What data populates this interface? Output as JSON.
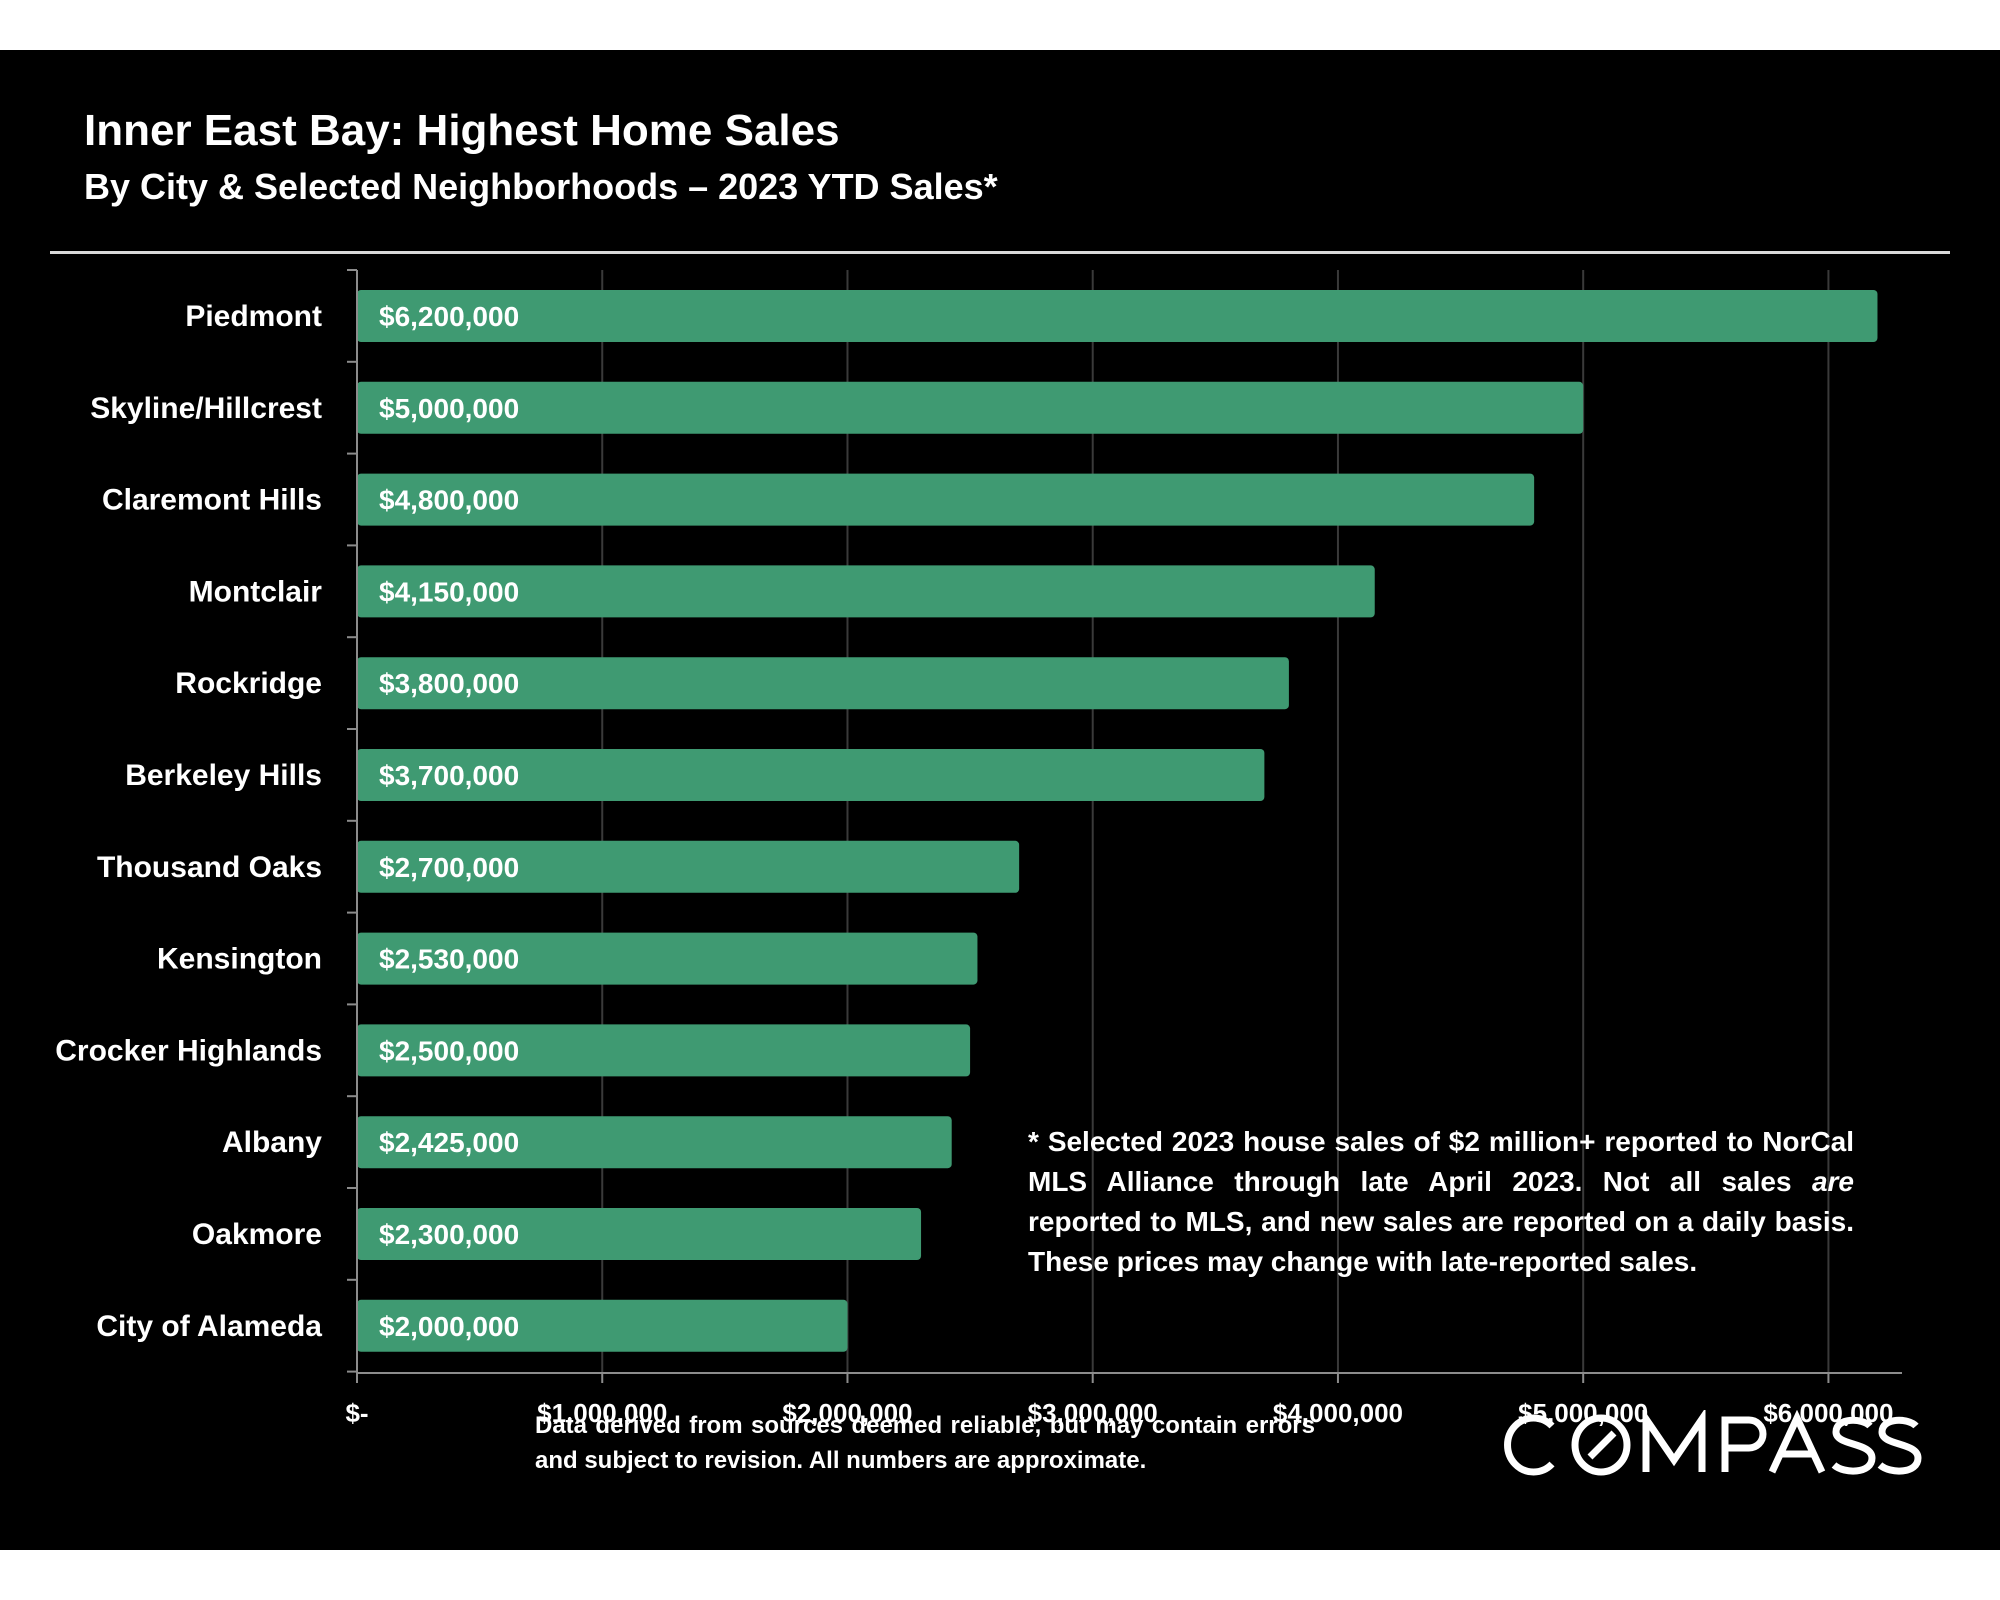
{
  "header": {
    "title": "Inner East Bay: Highest Home Sales",
    "subtitle": "By City & Selected Neighborhoods – 2023 YTD Sales*"
  },
  "chart_data": {
    "type": "bar",
    "orientation": "horizontal",
    "categories": [
      "Piedmont",
      "Skyline/Hillcrest",
      "Claremont Hills",
      "Montclair",
      "Rockridge",
      "Berkeley Hills",
      "Thousand Oaks",
      "Kensington",
      "Crocker Highlands",
      "Albany",
      "Oakmore",
      "City of Alameda"
    ],
    "values": [
      6200000,
      5000000,
      4800000,
      4150000,
      3800000,
      3700000,
      2700000,
      2530000,
      2500000,
      2425000,
      2300000,
      2000000
    ],
    "data_labels": [
      "$6,200,000",
      "$5,000,000",
      "$4,800,000",
      "$4,150,000",
      "$3,800,000",
      "$3,700,000",
      "$2,700,000",
      "$2,530,000",
      "$2,500,000",
      "$2,425,000",
      "$2,300,000",
      "$2,000,000"
    ],
    "xlim": [
      0,
      6300000
    ],
    "x_ticks": [
      0,
      1000000,
      2000000,
      3000000,
      4000000,
      5000000,
      6000000
    ],
    "x_tick_labels": [
      "$-",
      "$1,000,000",
      "$2,000,000",
      "$3,000,000",
      "$4,000,000",
      "$5,000,000",
      "$6,000,000"
    ],
    "grid": true,
    "bar_color": "#3f9a72",
    "legend": "none"
  },
  "footnote": {
    "lead": "* Selected 2023 house sales of $2 million+ reported to NorCal MLS Alliance through late April 2023. Not all sales ",
    "emphasis": "are",
    "tail": " reported to MLS, and new sales are reported on a daily basis. These prices may change with late-reported sales."
  },
  "source_note": "Data derived from sources deemed reliable, but may contain errors and subject to revision. All numbers are approximate.",
  "logo": {
    "text": "COMPASS"
  },
  "colors": {
    "background": "#000000",
    "bar": "#3f9a72",
    "text": "#ffffff",
    "gridline": "#3a3a3a"
  }
}
